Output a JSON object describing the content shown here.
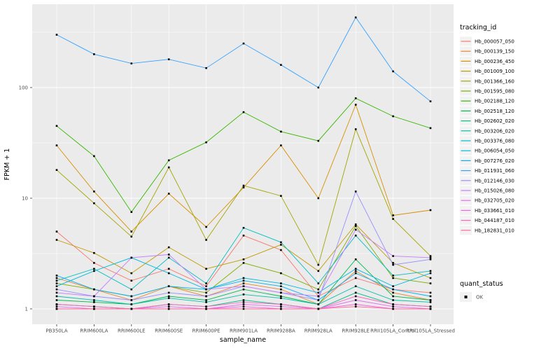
{
  "chart_data": {
    "type": "line",
    "title": "",
    "xlabel": "sample_name",
    "ylabel": "FPKM + 1",
    "y_scale": "log10",
    "ylim": [
      1,
      500
    ],
    "y_ticks": [
      1,
      10,
      100
    ],
    "y_minor_ticks": [
      3.162,
      31.62,
      316.2
    ],
    "grid": "on",
    "legend_position": "right",
    "panel_bg": "#EBEBEB",
    "grid_color": "#FFFFFF",
    "axis_text_color": "#4D4D4D",
    "point_color": "#000000",
    "categories": [
      "PB350LA",
      "RRIM600LA",
      "RRIM600LE",
      "RRIM600SE",
      "RRIM600PE",
      "RRIM901LA",
      "RRIM928BA",
      "RRIM928LA",
      "RRIM928LE",
      "RRII105LA_Control",
      "RRII105LA_Stressed"
    ],
    "series": [
      {
        "name": "Hb_000057_050",
        "color": "#F8766D",
        "values": [
          5.0,
          2.6,
          1.8,
          2.3,
          1.6,
          4.6,
          3.4,
          1.3,
          1.9,
          1.5,
          1.4
        ]
      },
      {
        "name": "Hb_000139_150",
        "color": "#EA8331",
        "values": [
          1.9,
          1.5,
          1.2,
          1.6,
          1.3,
          1.7,
          1.5,
          1.1,
          2.2,
          1.4,
          1.2
        ]
      },
      {
        "name": "Hb_000236_450",
        "color": "#D89000",
        "values": [
          30,
          11.5,
          5.0,
          11,
          5.5,
          12.5,
          30,
          10,
          70,
          7.0,
          7.8
        ]
      },
      {
        "name": "Hb_001009_100",
        "color": "#C09B00",
        "values": [
          4.2,
          3.2,
          2.1,
          3.6,
          2.3,
          2.8,
          3.8,
          2.2,
          5.8,
          2.6,
          1.9
        ]
      },
      {
        "name": "Hb_001366_160",
        "color": "#A3A500",
        "values": [
          18,
          9.0,
          4.5,
          19,
          4.2,
          13,
          10.5,
          2.5,
          42,
          6.5,
          3.0
        ]
      },
      {
        "name": "Hb_001595_080",
        "color": "#7CAE00",
        "values": [
          1.7,
          1.5,
          1.3,
          1.6,
          1.4,
          2.6,
          2.1,
          1.5,
          5.6,
          1.9,
          1.7
        ]
      },
      {
        "name": "Hb_002188_120",
        "color": "#39B600",
        "values": [
          45,
          24,
          7.5,
          22,
          32,
          60,
          40,
          33,
          80,
          55,
          43
        ]
      },
      {
        "name": "Hb_002518_120",
        "color": "#00BB4E",
        "values": [
          1.2,
          1.15,
          1.1,
          1.3,
          1.2,
          1.5,
          1.3,
          1.1,
          2.8,
          1.3,
          1.2
        ]
      },
      {
        "name": "Hb_002602_020",
        "color": "#00C087",
        "values": [
          1.1,
          1.05,
          1.0,
          1.1,
          1.05,
          1.2,
          1.1,
          1.0,
          1.4,
          1.1,
          1.05
        ]
      },
      {
        "name": "Hb_003206_020",
        "color": "#00C1AB",
        "values": [
          1.3,
          1.2,
          1.1,
          1.25,
          1.15,
          1.35,
          1.25,
          1.1,
          1.6,
          1.2,
          1.15
        ]
      },
      {
        "name": "Hb_003376_080",
        "color": "#00BFC4",
        "values": [
          1.8,
          2.3,
          1.5,
          2.9,
          1.7,
          5.4,
          4.0,
          1.7,
          4.6,
          2.0,
          2.2
        ]
      },
      {
        "name": "Hb_006054_050",
        "color": "#00BAE0",
        "values": [
          1.6,
          2.2,
          2.9,
          2.1,
          1.5,
          1.9,
          1.7,
          1.4,
          2.3,
          1.6,
          2.1
        ]
      },
      {
        "name": "Hb_007276_020",
        "color": "#00B0F6",
        "values": [
          2.0,
          1.5,
          1.3,
          1.6,
          1.5,
          1.8,
          1.6,
          1.2,
          2.1,
          1.5,
          1.3
        ]
      },
      {
        "name": "Hb_011931_060",
        "color": "#35A2FF",
        "values": [
          300,
          200,
          165,
          180,
          150,
          250,
          160,
          100,
          430,
          140,
          75
        ]
      },
      {
        "name": "Hb_012146_030",
        "color": "#9590FF",
        "values": [
          1.5,
          1.3,
          1.2,
          1.4,
          1.3,
          1.6,
          1.4,
          1.2,
          11.5,
          2.5,
          2.8
        ]
      },
      {
        "name": "Hb_015026_080",
        "color": "#C77CFF",
        "values": [
          1.4,
          1.3,
          2.9,
          3.1,
          1.5,
          1.6,
          1.4,
          1.3,
          5.2,
          3.0,
          2.9
        ]
      },
      {
        "name": "Hb_032705_020",
        "color": "#E76BF3",
        "values": [
          1.05,
          1.0,
          1.0,
          1.05,
          1.0,
          1.1,
          1.05,
          1.0,
          1.2,
          1.05,
          1.0
        ]
      },
      {
        "name": "Hb_033661_010",
        "color": "#FA62DB",
        "values": [
          1.0,
          1.0,
          1.0,
          1.0,
          1.0,
          1.05,
          1.0,
          1.0,
          1.1,
          1.0,
          1.0
        ]
      },
      {
        "name": "Hb_044187_010",
        "color": "#FF62BC",
        "values": [
          1.1,
          1.05,
          1.0,
          1.1,
          1.05,
          1.15,
          1.1,
          1.0,
          1.3,
          1.1,
          1.05
        ]
      },
      {
        "name": "Hb_182831_010",
        "color": "#FF6A98",
        "values": [
          1.0,
          1.0,
          1.0,
          1.0,
          1.0,
          1.0,
          1.0,
          1.0,
          1.05,
          1.0,
          1.0
        ]
      }
    ],
    "legend": {
      "color_legend_title": "tracking_id",
      "shape_legend_title": "quant_status",
      "shape_items": [
        {
          "label": "OK"
        }
      ]
    }
  }
}
